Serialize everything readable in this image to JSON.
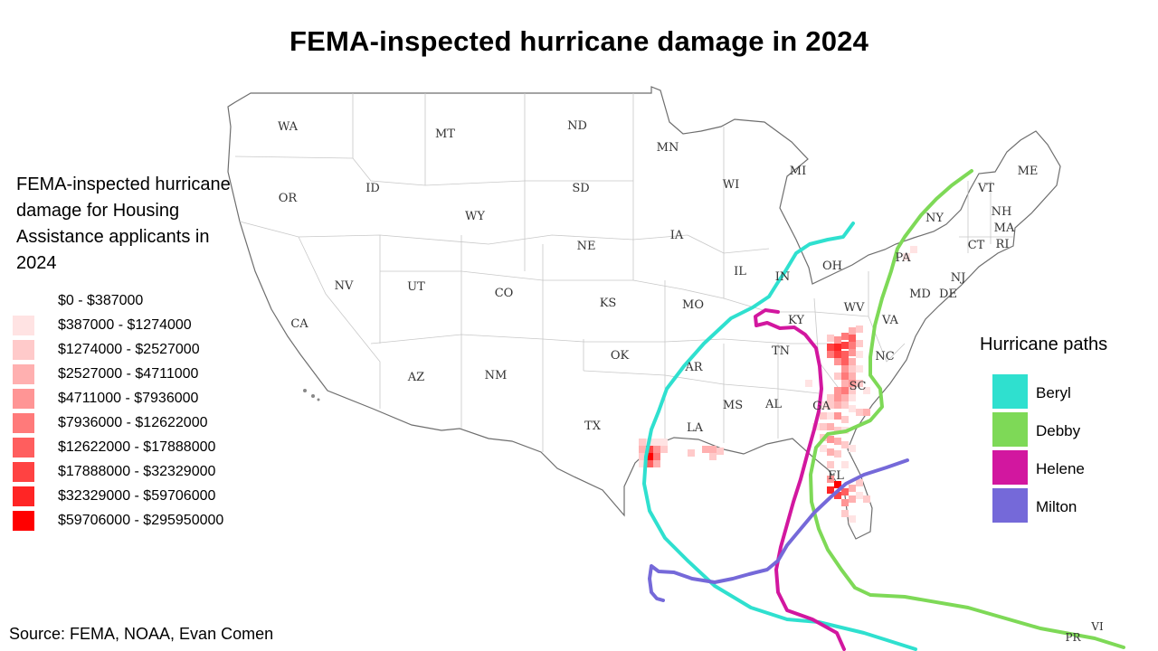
{
  "title": "FEMA-inspected hurricane damage in 2024",
  "damage_legend": {
    "title": "FEMA-inspected hurricane damage for Housing Assistance applicants in 2024",
    "bins": [
      {
        "label": "$0 - $387000",
        "color": "#ffffff"
      },
      {
        "label": "$387000 - $1274000",
        "color": "#ffe3e3"
      },
      {
        "label": "$1274000 - $2527000",
        "color": "#ffcaca"
      },
      {
        "label": "$2527000 - $4711000",
        "color": "#ffb0b0"
      },
      {
        "label": "$4711000 - $7936000",
        "color": "#ff9595"
      },
      {
        "label": "$7936000 - $12622000",
        "color": "#ff7a7a"
      },
      {
        "label": "$12622000 - $17888000",
        "color": "#ff5e5e"
      },
      {
        "label": "$17888000 - $32329000",
        "color": "#ff4242"
      },
      {
        "label": "$32329000 - $59706000",
        "color": "#ff2525"
      },
      {
        "label": "$59706000 - $295950000",
        "color": "#ff0000"
      }
    ]
  },
  "paths_legend": {
    "title": "Hurricane paths",
    "items": [
      {
        "name": "Beryl",
        "color": "#2fe0cf"
      },
      {
        "name": "Debby",
        "color": "#7ed957"
      },
      {
        "name": "Helene",
        "color": "#d2179f"
      },
      {
        "name": "Milton",
        "color": "#7569d9"
      }
    ]
  },
  "state_labels": [
    "WA",
    "MT",
    "ND",
    "MN",
    "MI",
    "OR",
    "ID",
    "WY",
    "SD",
    "WI",
    "NY",
    "VT",
    "NH",
    "ME",
    "MA",
    "RI",
    "CT",
    "NE",
    "IA",
    "PA",
    "NJ",
    "IL",
    "IN",
    "OH",
    "NV",
    "UT",
    "CO",
    "KS",
    "MO",
    "MD",
    "DE",
    "CA",
    "WV",
    "VA",
    "KY",
    "TN",
    "NC",
    "OK",
    "AR",
    "AZ",
    "NM",
    "SC",
    "MS",
    "AL",
    "GA",
    "TX",
    "LA",
    "FL"
  ],
  "territory_labels": [
    "VI",
    "PR"
  ],
  "source": "Source: FEMA, NOAA, Evan Comen"
}
